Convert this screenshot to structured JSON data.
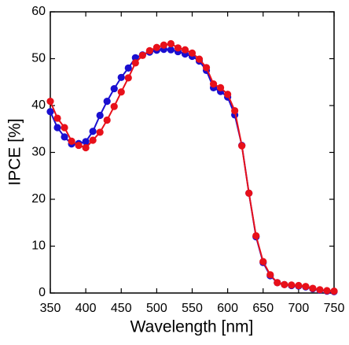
{
  "chart_data": {
    "type": "line",
    "x_label": "Wavelength [nm]",
    "y_label": "IPCE [%]",
    "x": [
      350,
      360,
      370,
      380,
      390,
      400,
      410,
      420,
      430,
      440,
      450,
      460,
      470,
      480,
      490,
      500,
      510,
      520,
      530,
      540,
      550,
      560,
      570,
      580,
      590,
      600,
      610,
      620,
      630,
      640,
      650,
      660,
      670,
      680,
      690,
      700,
      710,
      720,
      730,
      740,
      750
    ],
    "series": [
      {
        "color": "#1a0fd0",
        "values": [
          38.7,
          35.3,
          33.3,
          31.8,
          31.9,
          32.3,
          34.5,
          37.9,
          40.9,
          43.6,
          46,
          48,
          50.2,
          50.8,
          51.4,
          51.8,
          52,
          51.9,
          51.5,
          51,
          50.5,
          49.5,
          47.5,
          43.8,
          43,
          41.8,
          38,
          31.5,
          21.3,
          12,
          6.5,
          3.7,
          2.2,
          1.8,
          1.6,
          1.5,
          1.3,
          0.9,
          0.6,
          0.4,
          0.3
        ]
      },
      {
        "color": "#e8101a",
        "values": [
          40.9,
          37.3,
          35.3,
          32.4,
          31.5,
          31,
          32.6,
          34.3,
          36.9,
          39.8,
          42.9,
          45.9,
          49.1,
          50.7,
          51.7,
          52.4,
          52.9,
          53.2,
          52.3,
          51.9,
          51.2,
          49.9,
          48.1,
          44.6,
          43.8,
          42.4,
          38.9,
          31.4,
          21.3,
          12.2,
          6.7,
          3.9,
          2.2,
          1.8,
          1.7,
          1.6,
          1.4,
          1,
          0.7,
          0.5,
          0.4
        ]
      }
    ],
    "xlim": [
      350,
      750
    ],
    "xticks": [
      350,
      400,
      450,
      500,
      550,
      600,
      650,
      700,
      750
    ],
    "ylim": [
      0,
      60
    ],
    "yticks": [
      0,
      10,
      20,
      30,
      40,
      50,
      60
    ]
  }
}
